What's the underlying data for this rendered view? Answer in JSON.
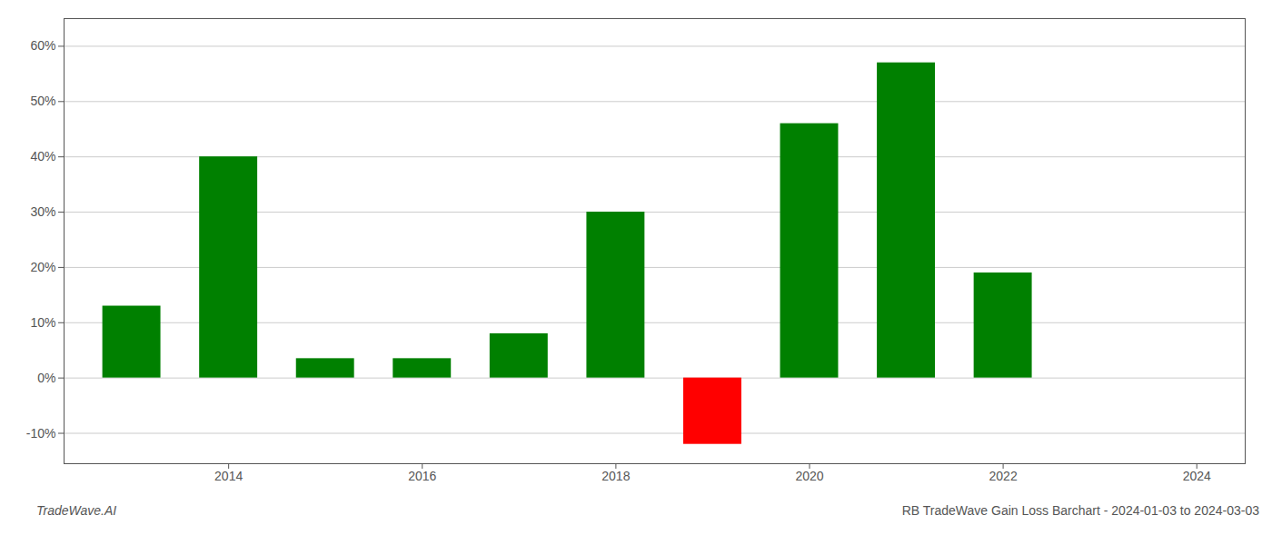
{
  "chart_data": {
    "type": "bar",
    "x": [
      2013,
      2014,
      2015,
      2016,
      2017,
      2018,
      2019,
      2020,
      2021,
      2022
    ],
    "values": [
      0.13,
      0.4,
      0.035,
      0.035,
      0.08,
      0.3,
      -0.12,
      0.46,
      0.57,
      0.19
    ],
    "colors": [
      "#008000",
      "#008000",
      "#008000",
      "#008000",
      "#008000",
      "#008000",
      "#ff0000",
      "#008000",
      "#008000",
      "#008000"
    ],
    "xlim": [
      2012.3,
      2024.5
    ],
    "xticks": [
      2014,
      2016,
      2018,
      2020,
      2022,
      2024
    ],
    "ylim": [
      -0.155,
      0.65
    ],
    "yticks": [
      {
        "value": -0.1,
        "label": "-10%"
      },
      {
        "value": 0.0,
        "label": "0%"
      },
      {
        "value": 0.1,
        "label": "10%"
      },
      {
        "value": 0.2,
        "label": "20%"
      },
      {
        "value": 0.3,
        "label": "30%"
      },
      {
        "value": 0.4,
        "label": "40%"
      },
      {
        "value": 0.5,
        "label": "50%"
      },
      {
        "value": 0.6,
        "label": "60%"
      }
    ],
    "grid": true,
    "annotations": [
      "TradeWave.AI",
      "RB TradeWave Gain Loss Barchart - 2024-01-03 to 2024-03-03"
    ]
  }
}
